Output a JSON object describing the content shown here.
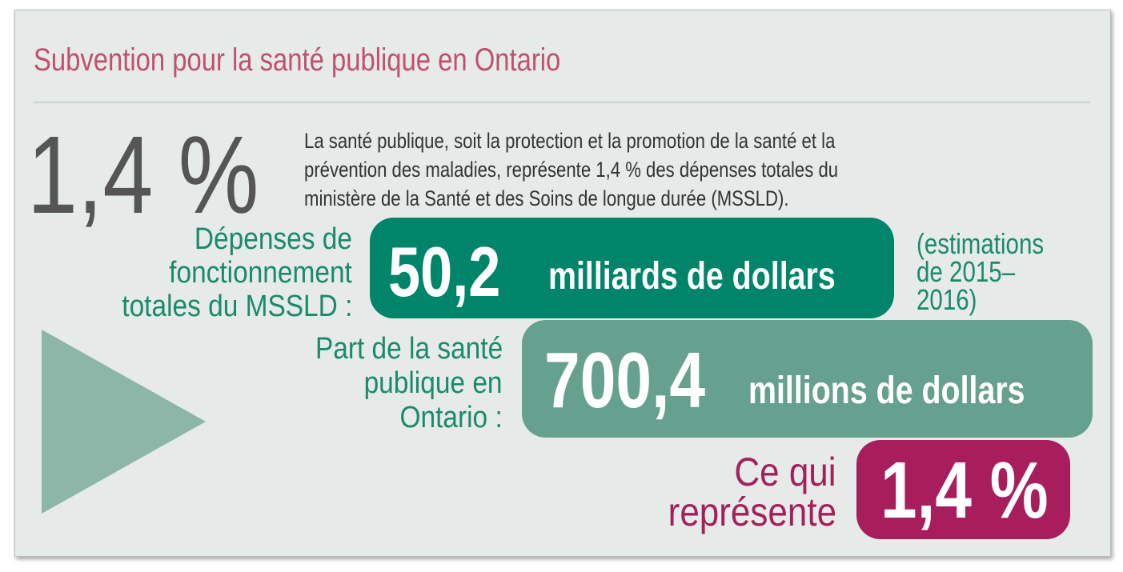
{
  "title": "Subvention pour la santé publique en Ontario",
  "headline": {
    "figure": "1,4 %",
    "description_lines": [
      "La santé publique, soit la protection et la promotion de la santé et la",
      "prévention des maladies, représente 1,4 % des dépenses totales du",
      "ministère de la Santé et des Soins de longue durée (MSSLD)."
    ]
  },
  "rows": [
    {
      "label_lines": [
        "Dépenses de",
        "fonctionnement",
        "totales du MSSLD :"
      ],
      "value": "50,2",
      "unit": "milliards de dollars",
      "note_lines": [
        "(estimations",
        "de 2015–",
        "2016)"
      ]
    },
    {
      "label_lines": [
        "Part de la santé",
        "publique en",
        "Ontario :"
      ],
      "value": "700,4",
      "unit": "millions de dollars"
    },
    {
      "label_lines": [
        "Ce qui",
        "représente"
      ],
      "value": "1,4 %"
    }
  ]
}
